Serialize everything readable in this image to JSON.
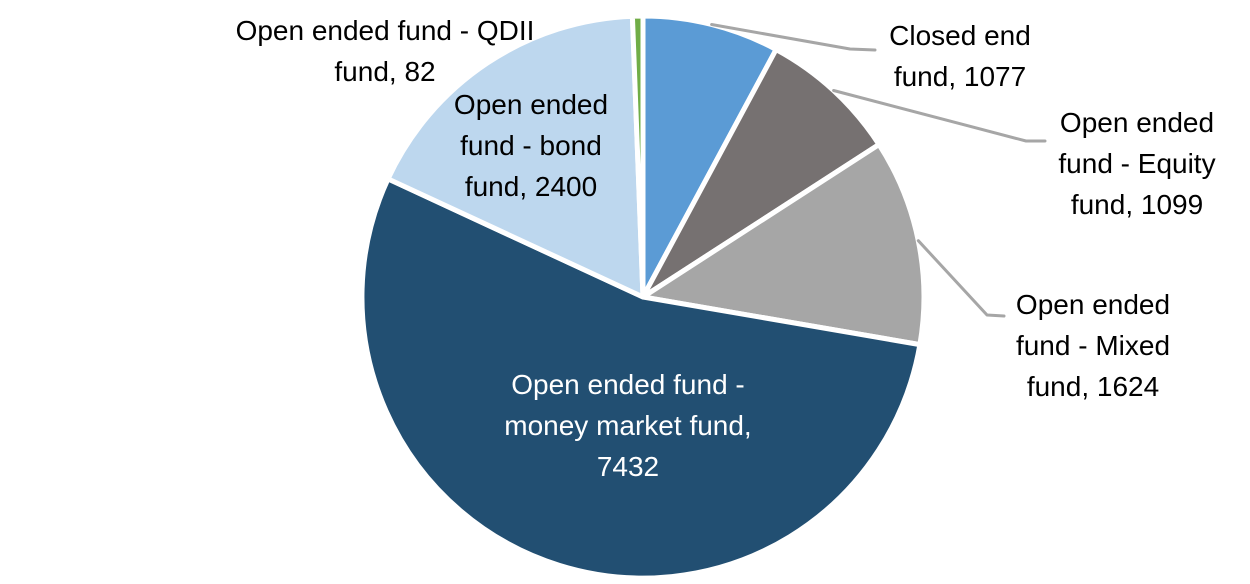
{
  "chart_data": {
    "type": "pie",
    "title": "",
    "legend_position": "none",
    "data_label_format": "category, value",
    "background_color": "#FFFFFF",
    "leader_line_color": "#A6A6A6",
    "separator_color": "#FFFFFF",
    "start_angle_deg": 0,
    "direction": "clockwise",
    "total": 13714,
    "slices": [
      {
        "category": "Closed end fund",
        "value": 1077,
        "color": "#5B9BD5",
        "label_text_color": "#000000",
        "label_lines": [
          "Closed end",
          "fund, 1077"
        ]
      },
      {
        "category": "Open ended fund - Equity fund",
        "value": 1099,
        "color": "#767171",
        "label_text_color": "#000000",
        "label_lines": [
          "Open ended",
          "fund - Equity",
          "fund, 1099"
        ]
      },
      {
        "category": "Open ended fund - Mixed fund",
        "value": 1624,
        "color": "#A6A6A6",
        "label_text_color": "#000000",
        "label_lines": [
          "Open ended",
          "fund - Mixed",
          "fund, 1624"
        ]
      },
      {
        "category": "Open ended fund - money market fund",
        "value": 7432,
        "color": "#224F72",
        "label_text_color": "#FFFFFF",
        "label_lines": [
          "Open ended fund -",
          "money market fund,",
          "7432"
        ]
      },
      {
        "category": "Open ended fund - bond fund",
        "value": 2400,
        "color": "#BDD7EE",
        "label_text_color": "#000000",
        "label_lines": [
          "Open ended",
          "fund - bond",
          "fund, 2400"
        ]
      },
      {
        "category": "Open ended fund - QDII fund",
        "value": 82,
        "color": "#70AD47",
        "label_text_color": "#000000",
        "label_lines": [
          "Open ended fund - QDII",
          "fund, 82"
        ]
      }
    ]
  }
}
